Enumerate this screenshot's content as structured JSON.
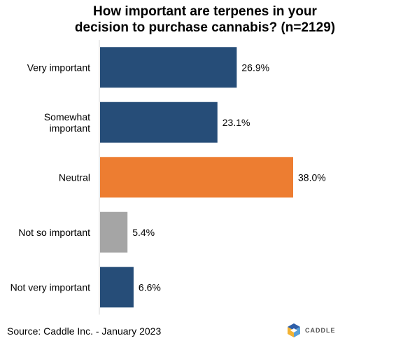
{
  "chart_data": {
    "type": "bar",
    "orientation": "horizontal",
    "title_lines": [
      "How important are terpenes in your",
      "decision to purchase cannabis? (n=2129)"
    ],
    "categories": [
      [
        "Very important"
      ],
      [
        "Somewhat",
        "important"
      ],
      [
        "Neutral"
      ],
      [
        "Not so important"
      ],
      [
        "Not very important"
      ]
    ],
    "values": [
      26.9,
      23.1,
      38.0,
      5.4,
      6.6
    ],
    "value_labels": [
      "26.9%",
      "23.1%",
      "38.0%",
      "5.4%",
      "6.6%"
    ],
    "bar_colors": [
      "#264d78",
      "#264d78",
      "#ed7d31",
      "#a5a5a5",
      "#264d78"
    ],
    "xlim": [
      0,
      38.0
    ],
    "grid": false,
    "legend": "none"
  },
  "footer": {
    "source": "Source: Caddle Inc. - January 2023",
    "logo_text": "CADDLE"
  },
  "colors": {
    "primary": "#264d78",
    "highlight": "#ed7d31",
    "neutral": "#a5a5a5",
    "axis": "#d9d9d9"
  }
}
